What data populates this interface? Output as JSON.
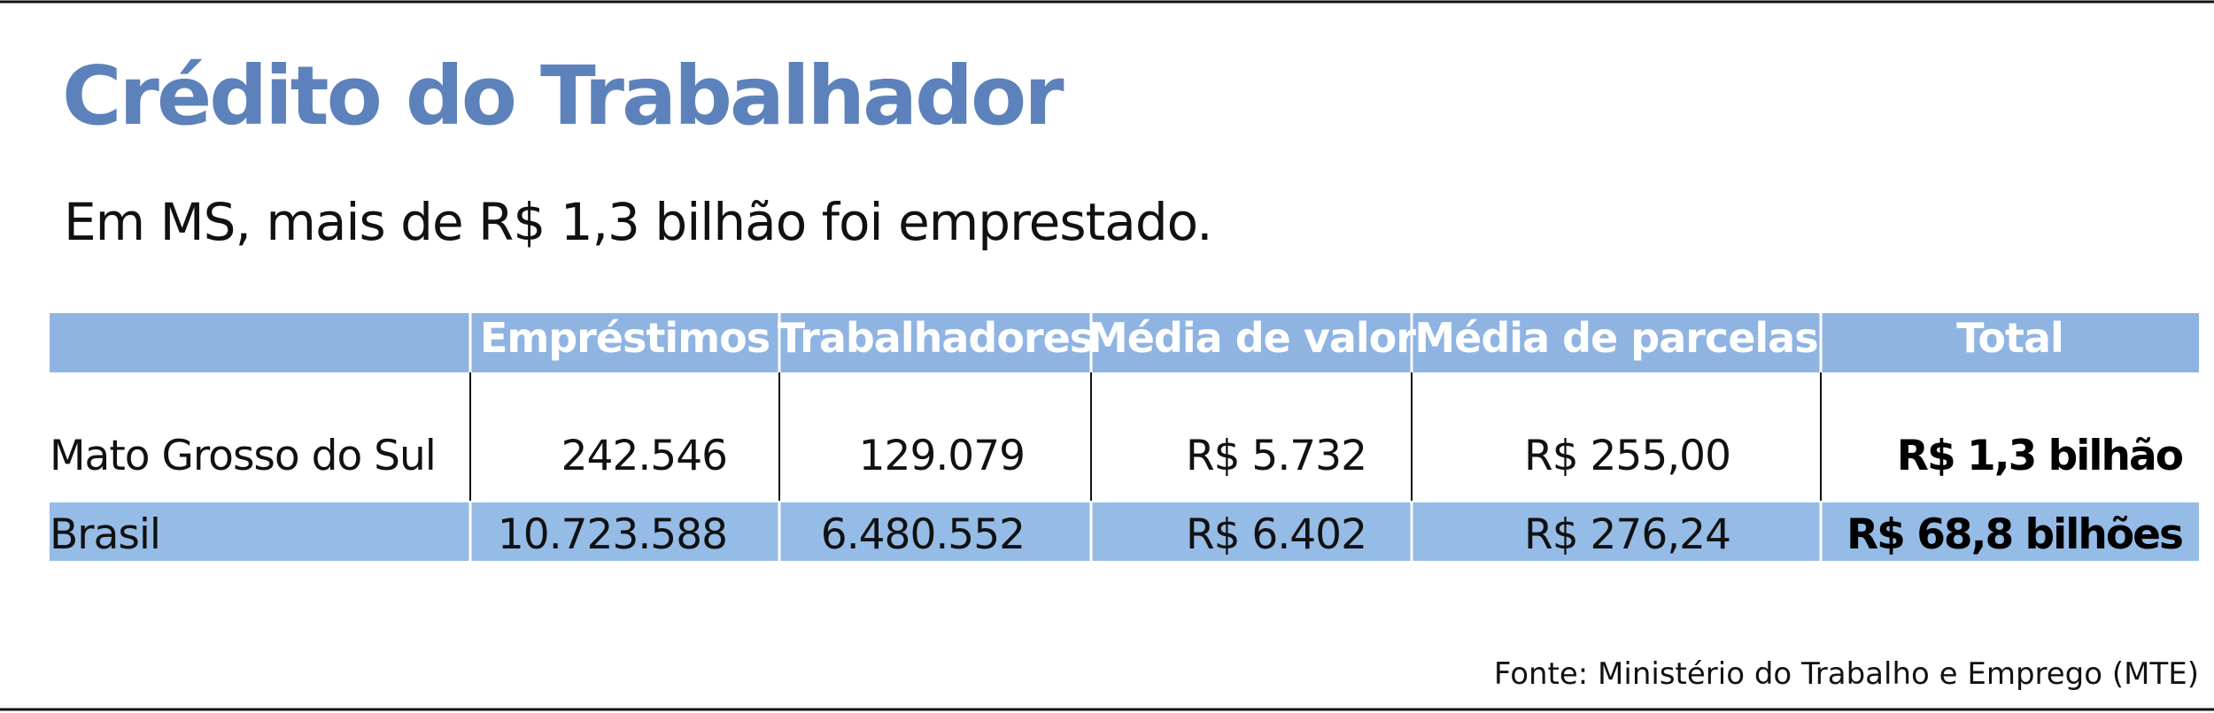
{
  "header": {
    "title": "Crédito do Trabalhador",
    "subtitle": "Em MS, mais de R$ 1,3 bilhão foi emprestado."
  },
  "table": {
    "columns": [
      "Empréstimos",
      "Trabalhadores",
      "Média de valor",
      "Média de parcelas",
      "Total"
    ],
    "rows": [
      {
        "label": "Mato Grosso do Sul",
        "cells": [
          "242.546",
          "129.079",
          "R$ 5.732",
          "R$ 255,00",
          "R$ 1,3 bilhão"
        ]
      },
      {
        "label": "Brasil",
        "cells": [
          "10.723.588",
          "6.480.552",
          "R$ 6.402",
          "R$ 276,24",
          "R$ 68,8 bilhões"
        ]
      }
    ]
  },
  "source": "Fonte: Ministério do Trabalho e Emprego (MTE)"
}
